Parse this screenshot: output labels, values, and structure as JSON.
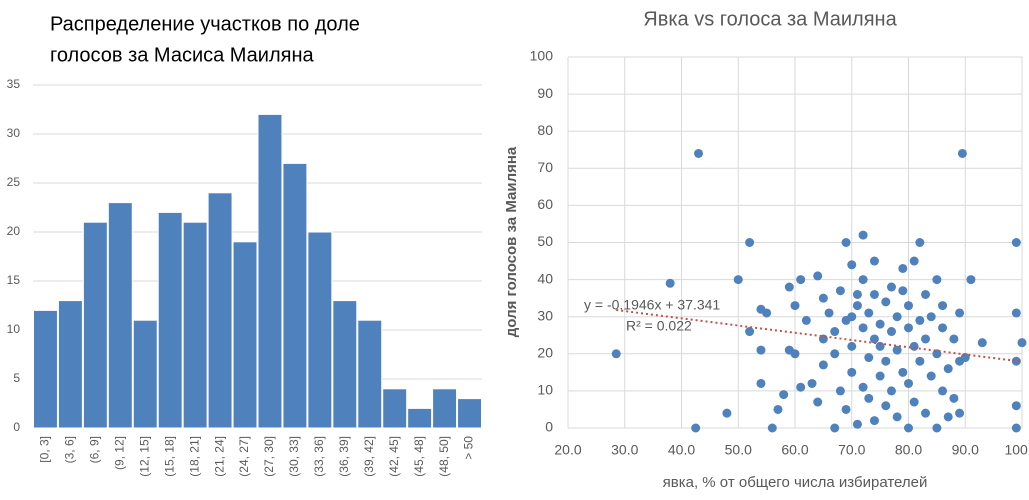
{
  "chart_data": [
    {
      "type": "bar",
      "title": [
        "Распределение участков по доле",
        "голосов за Масиса Маиляна"
      ],
      "categories": [
        "[0, 3]",
        "(3, 6]",
        "(6, 9]",
        "(9, 12]",
        "(12, 15]",
        "(15, 18]",
        "(18, 21]",
        "(21, 24]",
        "(24, 27]",
        "(27, 30]",
        "(30, 33]",
        "(33, 36]",
        "(36, 39]",
        "(39, 42]",
        "(42, 45]",
        "(45, 48]",
        "(48, 50]",
        "> 50"
      ],
      "values": [
        12,
        13,
        21,
        23,
        11,
        22,
        21,
        24,
        19,
        32,
        27,
        20,
        13,
        11,
        4,
        2,
        4,
        3
      ],
      "color": "#4f81bd",
      "ylim": [
        0,
        35
      ],
      "yticks": [
        0,
        5,
        10,
        15,
        20,
        25,
        30,
        35
      ],
      "grid": true
    },
    {
      "type": "scatter",
      "title": "Явка vs голоса за Маиляна",
      "x_label": "явка, % от общего числа избирателей",
      "y_label": "доля голосов за Маиляна",
      "color": "#4f81bd",
      "x": [
        43,
        89.5,
        28.5,
        38,
        42.5,
        48,
        50,
        52,
        52,
        54,
        54,
        54,
        55,
        56,
        57,
        58,
        59,
        59,
        60,
        60,
        61,
        61,
        62,
        63,
        64,
        64,
        65,
        65,
        65,
        66,
        67,
        67,
        67,
        68,
        68,
        69,
        69,
        69,
        70,
        70,
        70,
        70,
        71,
        71,
        71,
        72,
        72,
        72,
        72,
        73,
        73,
        73,
        74,
        74,
        74,
        74,
        75,
        75,
        75,
        76,
        76,
        76,
        77,
        77,
        77,
        78,
        78,
        78,
        79,
        79,
        79,
        80,
        80,
        80,
        80,
        81,
        81,
        81,
        82,
        82,
        82,
        83,
        83,
        83,
        84,
        84,
        85,
        85,
        85,
        86,
        86,
        86,
        87,
        87,
        88,
        88,
        89,
        89,
        89,
        90,
        91,
        93,
        99,
        99,
        99,
        99,
        99,
        100
      ],
      "values": [
        74,
        74,
        20,
        39,
        0,
        4,
        40,
        50,
        26,
        32,
        21,
        12,
        31,
        0,
        5,
        9,
        38,
        21,
        20,
        33,
        11,
        40,
        29,
        12,
        7,
        41,
        24,
        35,
        17,
        31,
        0,
        20,
        26,
        10,
        37,
        50,
        29,
        5,
        30,
        44,
        22,
        15,
        33,
        1,
        36,
        52,
        27,
        11,
        40,
        19,
        31,
        8,
        24,
        45,
        36,
        2,
        28,
        14,
        22,
        34,
        6,
        18,
        38,
        26,
        10,
        30,
        21,
        3,
        37,
        15,
        43,
        27,
        0,
        12,
        33,
        22,
        45,
        7,
        50,
        29,
        18,
        4,
        36,
        24,
        14,
        30,
        0,
        20,
        40,
        27,
        10,
        33,
        3,
        16,
        24,
        8,
        4,
        31,
        18,
        19,
        40,
        23,
        50,
        31,
        18,
        6,
        0,
        23
      ],
      "xlim": [
        20,
        100
      ],
      "xticks": [
        {
          "value": 20,
          "label": "20.0"
        },
        {
          "value": 30,
          "label": "30.0"
        },
        {
          "value": 40,
          "label": "40.0"
        },
        {
          "value": 50,
          "label": "50.0"
        },
        {
          "value": 60,
          "label": "60.0"
        },
        {
          "value": 70,
          "label": "70.0"
        },
        {
          "value": 80,
          "label": "80.0"
        },
        {
          "value": 90,
          "label": "90.0"
        },
        {
          "value": 100,
          "label": "100.0"
        }
      ],
      "ylim": [
        0,
        100
      ],
      "yticks": [
        0,
        10,
        20,
        30,
        40,
        50,
        60,
        70,
        80,
        90,
        100
      ],
      "grid": true,
      "trendline": {
        "label": "y = -0.1946x + 37.341",
        "r2_label": "R² = 0.022",
        "slope": -0.1946,
        "intercept": 37.341,
        "color": "#c0504d"
      }
    }
  ]
}
